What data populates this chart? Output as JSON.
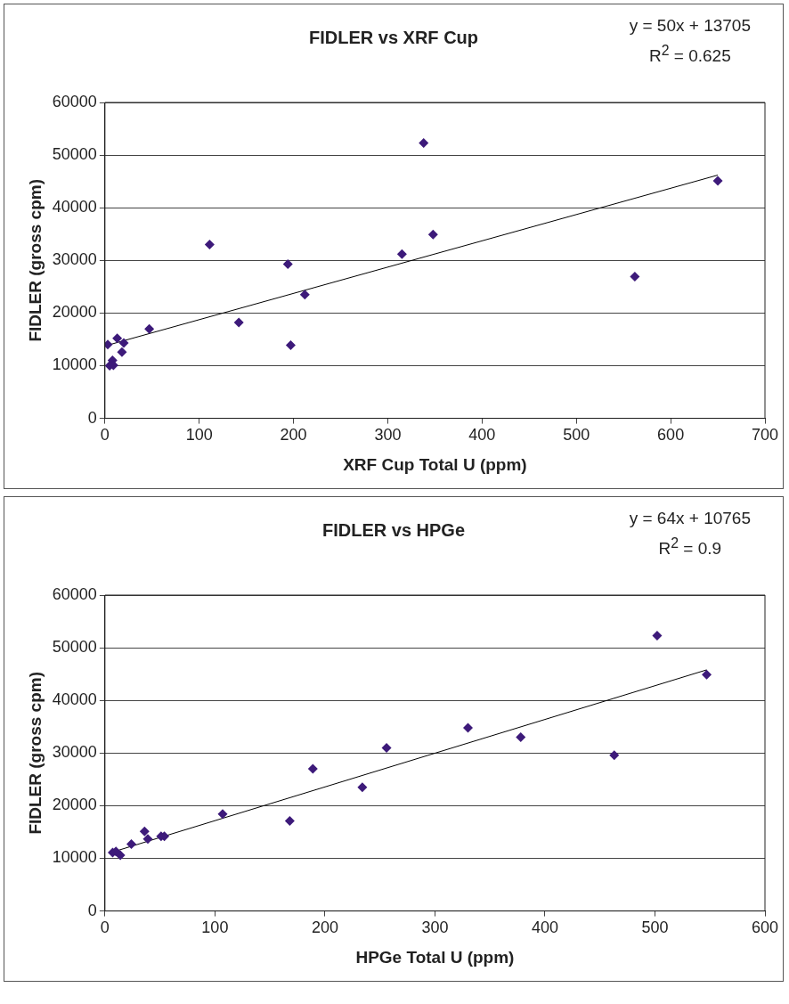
{
  "chart_data": [
    {
      "type": "scatter",
      "title": "FIDLER vs XRF Cup",
      "xlabel": "XRF Cup Total U (ppm)",
      "ylabel": "FIDLER (gross cpm)",
      "xlim": [
        0,
        700
      ],
      "xticks": [
        0,
        100,
        200,
        300,
        400,
        500,
        600,
        700
      ],
      "ylim": [
        0,
        60000
      ],
      "yticks": [
        0,
        10000,
        20000,
        30000,
        40000,
        50000,
        60000
      ],
      "grid": "y",
      "legend": false,
      "marker": "diamond",
      "annotations": [
        "y = 50x + 13705",
        "R$^{2}$ = 0.625"
      ],
      "series": [
        {
          "type": "scatter",
          "color": "#3d1a7a",
          "x": [
            3,
            13,
            20,
            18,
            8,
            5,
            9,
            47,
            111,
            142,
            194,
            197,
            212,
            315,
            338,
            348,
            562,
            650
          ],
          "values": [
            14000,
            15200,
            14300,
            12600,
            11000,
            10000,
            10100,
            17000,
            33000,
            18200,
            29300,
            13900,
            23500,
            31200,
            52300,
            34900,
            26900,
            45100
          ]
        },
        {
          "type": "line",
          "color": "#000000",
          "marker": "none",
          "x": [
            3,
            650
          ],
          "values": [
            13900,
            46200
          ]
        }
      ]
    },
    {
      "type": "scatter",
      "title": "FIDLER vs HPGe",
      "xlabel": "HPGe Total U (ppm)",
      "ylabel": "FIDLER (gross cpm)",
      "xlim": [
        0,
        600
      ],
      "xticks": [
        0,
        100,
        200,
        300,
        400,
        500,
        600
      ],
      "ylim": [
        0,
        60000
      ],
      "yticks": [
        0,
        10000,
        20000,
        30000,
        40000,
        50000,
        60000
      ],
      "grid": "y",
      "legend": false,
      "marker": "diamond",
      "annotations": [
        "y = 64x + 10765",
        "R$^{2}$ = 0.9"
      ],
      "series": [
        {
          "type": "scatter",
          "color": "#3d1a7a",
          "x": [
            7,
            10,
            14,
            24,
            36,
            39,
            51,
            54,
            107,
            168,
            189,
            234,
            256,
            330,
            378,
            463,
            502,
            547
          ],
          "values": [
            11100,
            11300,
            10600,
            12700,
            15100,
            13700,
            14200,
            14200,
            18400,
            17100,
            27000,
            23500,
            31000,
            34800,
            33000,
            29600,
            52300,
            44900
          ]
        },
        {
          "type": "line",
          "color": "#000000",
          "marker": "none",
          "x": [
            7,
            547
          ],
          "values": [
            11200,
            45800
          ]
        }
      ]
    }
  ]
}
